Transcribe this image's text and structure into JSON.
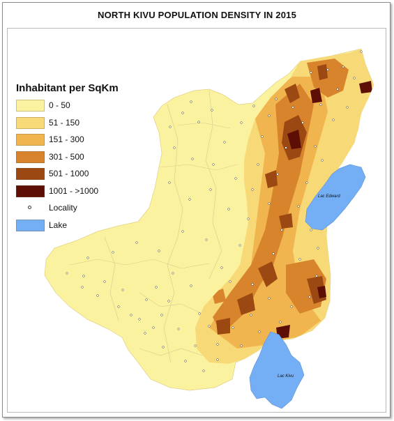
{
  "map": {
    "title": "NORTH KIVU POPULATION DENSITY IN 2015",
    "legend": {
      "title": "Inhabitant per SqKm",
      "classes": [
        {
          "label": "0 - 50",
          "color": "#fbf2a0"
        },
        {
          "label": "51 - 150",
          "color": "#f8d977"
        },
        {
          "label": "151 - 300",
          "color": "#f0b54e"
        },
        {
          "label": "301 - 500",
          "color": "#d7842c"
        },
        {
          "label": "501 - 1000",
          "color": "#9b4812"
        },
        {
          "label": "1001 - >1000",
          "color": "#5e0f05"
        }
      ],
      "locality_label": "Locality",
      "lake_label": "Lake",
      "lake_color": "#74aef5"
    },
    "lakes": [
      {
        "name": "Lac Edward"
      },
      {
        "name": "Lac Kivu"
      }
    ]
  }
}
